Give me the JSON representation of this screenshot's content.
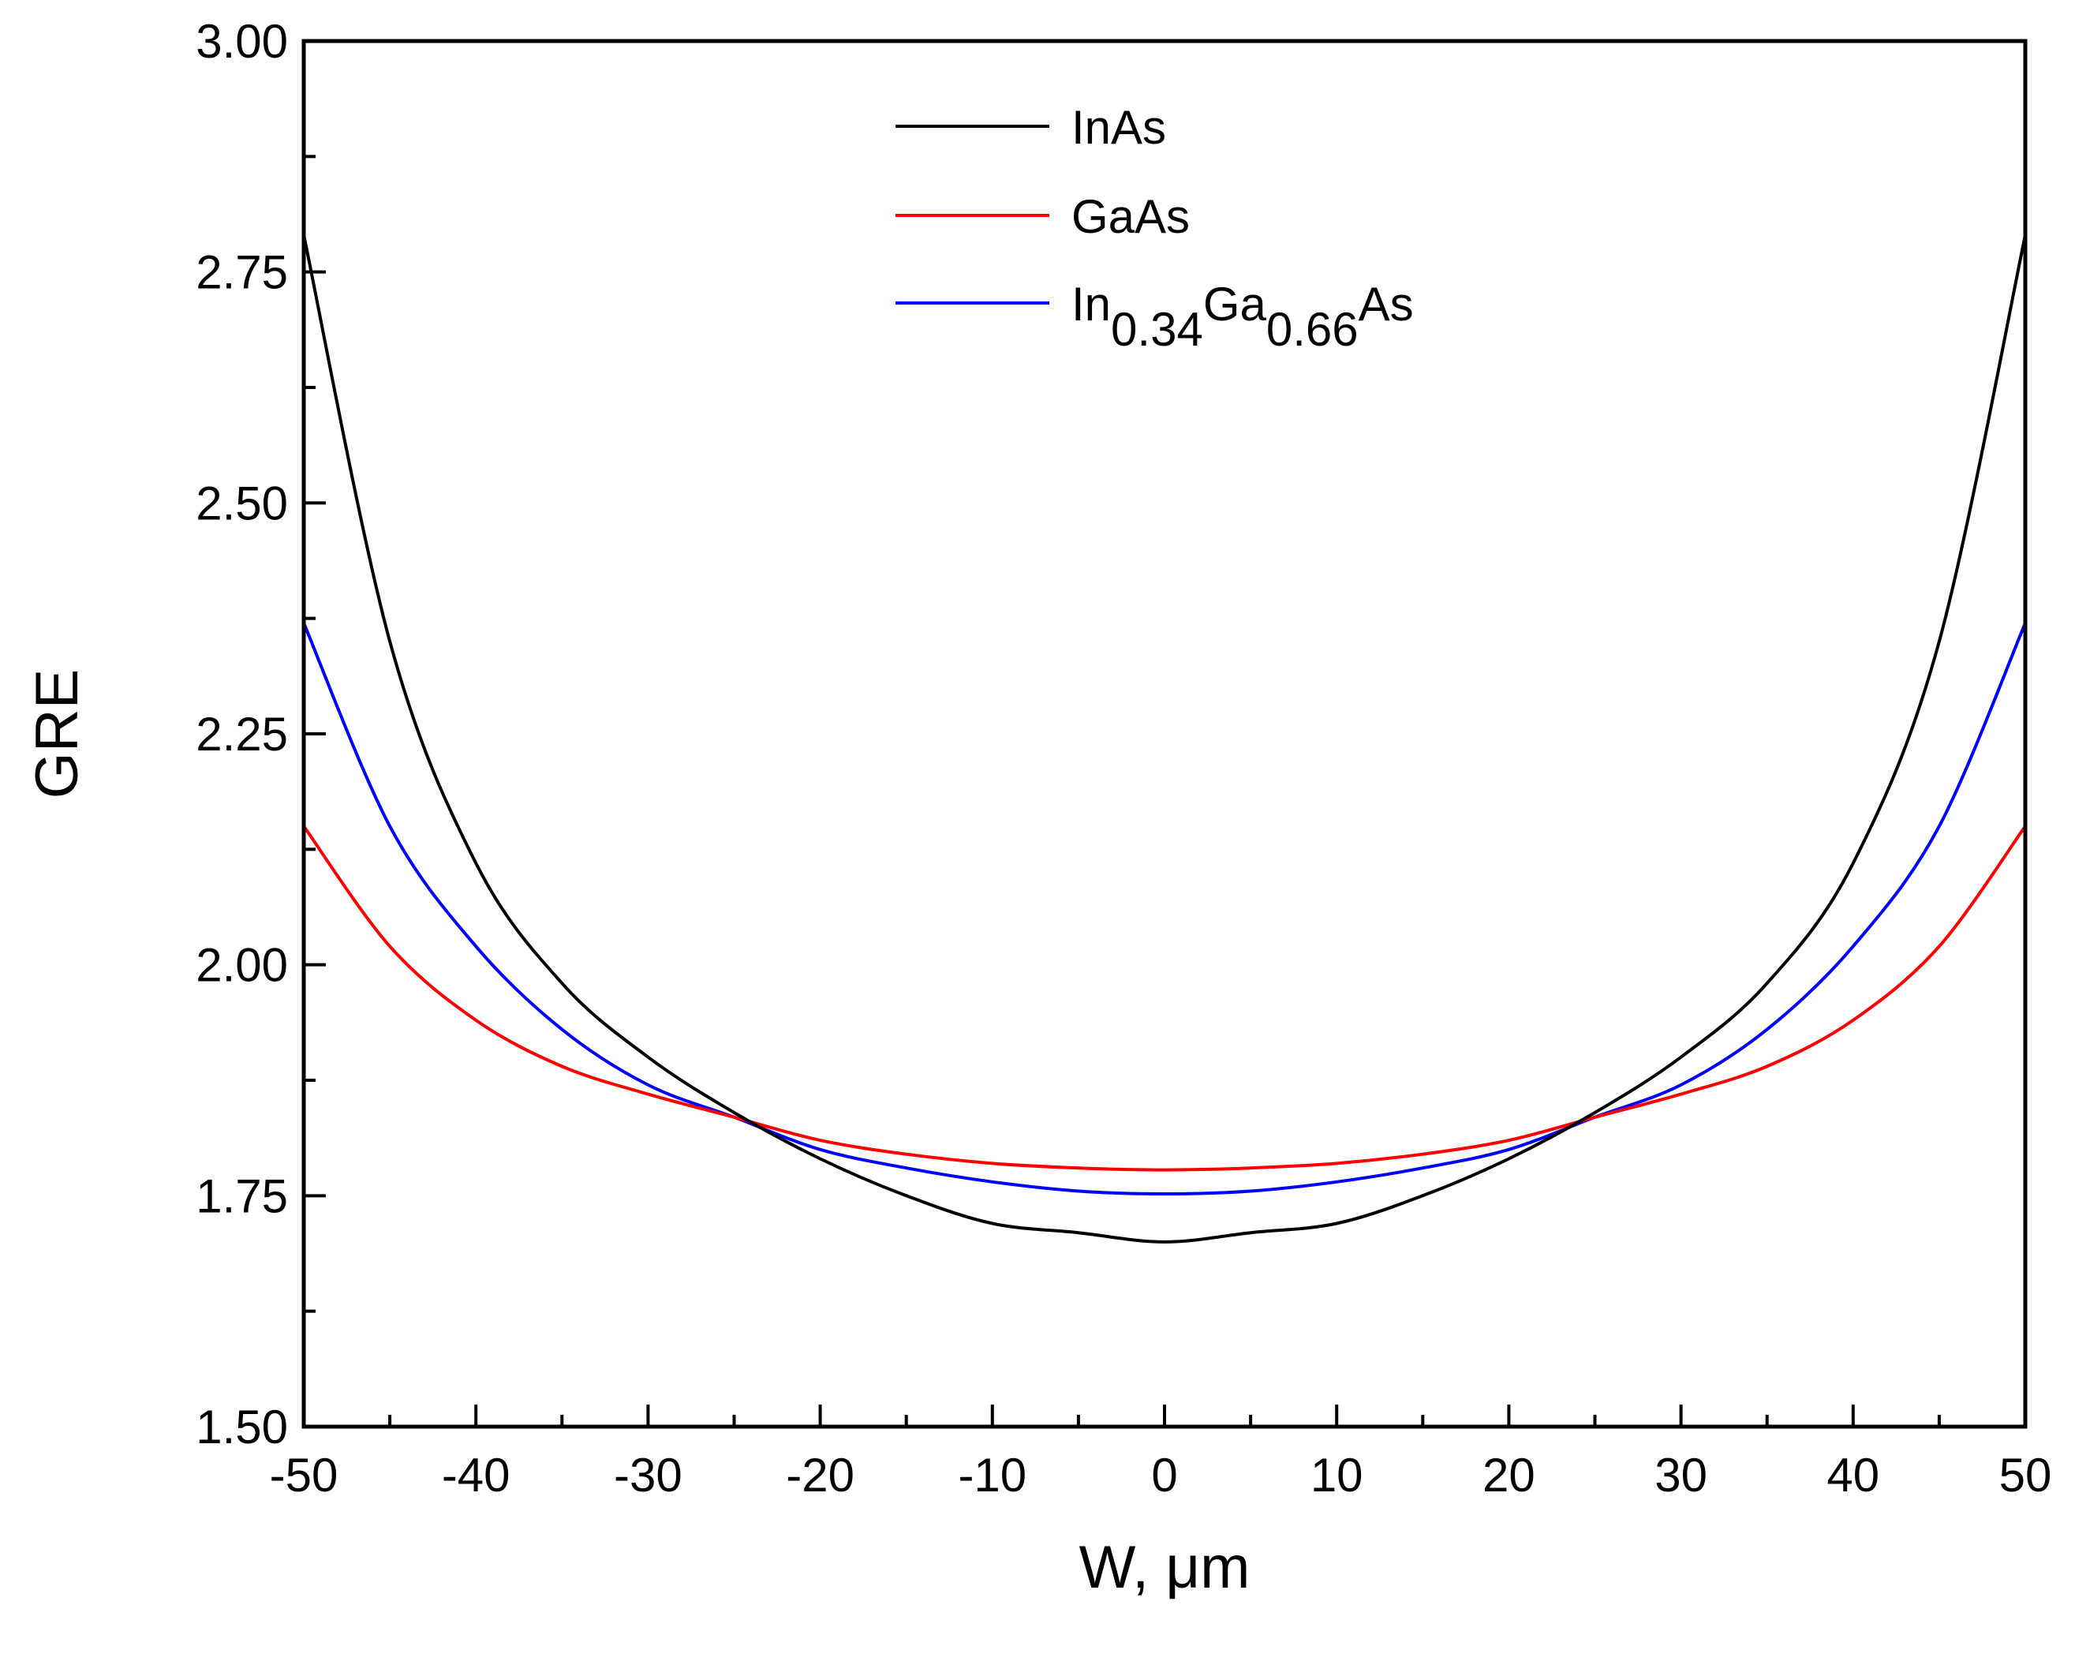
{
  "chart_data": {
    "type": "line",
    "title": "",
    "xlabel": "W, μm",
    "ylabel": "GRE",
    "xlim": [
      -50,
      50
    ],
    "ylim": [
      1.5,
      3.0
    ],
    "x_ticks": [
      -50,
      -40,
      -30,
      -20,
      -10,
      0,
      10,
      20,
      30,
      40,
      50
    ],
    "x_tick_labels": [
      "-50",
      "-40",
      "-30",
      "-20",
      "-10",
      "0",
      "10",
      "20",
      "30",
      "40",
      "50"
    ],
    "y_ticks": [
      1.5,
      1.75,
      2.0,
      2.25,
      2.5,
      2.75,
      3.0
    ],
    "y_tick_labels": [
      "1.50",
      "1.75",
      "2.00",
      "2.25",
      "2.50",
      "2.75",
      "3.00"
    ],
    "grid": false,
    "legend_position": "top-center",
    "x": [
      -50,
      -45,
      -40,
      -35,
      -30,
      -25,
      -20,
      -15,
      -10,
      -5,
      0,
      5,
      10,
      15,
      20,
      25,
      30,
      35,
      40,
      45,
      50
    ],
    "series": [
      {
        "name": "InAs",
        "legend": {
          "base": "InAs"
        },
        "color": "#000000",
        "values": [
          2.79,
          2.35,
          2.11,
          1.98,
          1.9,
          1.84,
          1.79,
          1.75,
          1.72,
          1.71,
          1.7,
          1.71,
          1.72,
          1.75,
          1.79,
          1.84,
          1.9,
          1.98,
          2.11,
          2.35,
          2.79
        ]
      },
      {
        "name": "GaAs",
        "legend": {
          "base": "GaAs"
        },
        "color": "#ff0000",
        "values": [
          2.15,
          2.02,
          1.94,
          1.89,
          1.86,
          1.835,
          1.81,
          1.795,
          1.785,
          1.78,
          1.778,
          1.78,
          1.785,
          1.795,
          1.81,
          1.835,
          1.86,
          1.89,
          1.94,
          2.02,
          2.15
        ]
      },
      {
        "name": "In0.34Ga0.66As",
        "legend": {
          "el1": "In",
          "sub1": "0.34",
          "el2": "Ga",
          "sub2": "0.66",
          "el3": "As"
        },
        "color": "#0000ff",
        "values": [
          2.37,
          2.15,
          2.02,
          1.93,
          1.87,
          1.835,
          1.8,
          1.78,
          1.765,
          1.755,
          1.752,
          1.755,
          1.765,
          1.78,
          1.8,
          1.835,
          1.87,
          1.93,
          2.02,
          2.15,
          2.37
        ]
      }
    ]
  }
}
